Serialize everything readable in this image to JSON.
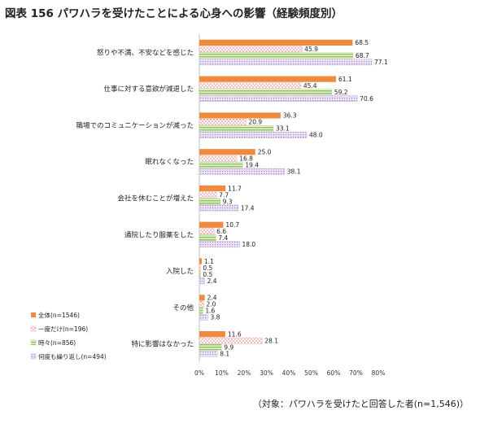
{
  "title": "図表 156 パワハラを受けたことによる心身への影響（経験頻度別）",
  "footnote": "（対象：パワハラを受けたと回答した者(n=1,546)）",
  "chart_data": {
    "type": "bar",
    "orientation": "horizontal",
    "categories": [
      "怒りや不満、不安などを感じた",
      "仕事に対する意欲が減退した",
      "職場でのコミュニケーションが減った",
      "眠れなくなった",
      "会社を休むことが増えた",
      "通院したり服薬をした",
      "入院した",
      "その他",
      "特に影響はなかった"
    ],
    "series": [
      {
        "name": "全体(n=1546)",
        "color": "#f08a3c",
        "pattern": "solid",
        "values": [
          68.5,
          61.1,
          36.3,
          25.0,
          11.7,
          10.7,
          1.1,
          2.4,
          11.6
        ]
      },
      {
        "name": "一度だけ(n=196)",
        "color": "#e8a0a0",
        "pattern": "dots",
        "values": [
          45.9,
          45.4,
          20.9,
          16.8,
          7.7,
          6.6,
          0.5,
          2.0,
          28.1
        ]
      },
      {
        "name": "時々(n=856)",
        "color": "#a6cf7a",
        "pattern": "hstripes",
        "values": [
          68.7,
          59.2,
          33.1,
          19.4,
          9.3,
          7.4,
          0.5,
          1.6,
          9.9
        ]
      },
      {
        "name": "何度も繰り返し(n=494)",
        "color": "#b9a3d6",
        "pattern": "grid",
        "values": [
          77.1,
          70.6,
          48.0,
          38.1,
          17.4,
          18.0,
          2.4,
          3.8,
          8.1
        ]
      }
    ],
    "xlim": [
      0,
      80
    ],
    "x_ticks": [
      "0%",
      "10%",
      "20%",
      "30%",
      "40%",
      "50%",
      "60%",
      "70%",
      "80%"
    ],
    "legend_position": "bottom-left",
    "grid": false
  }
}
